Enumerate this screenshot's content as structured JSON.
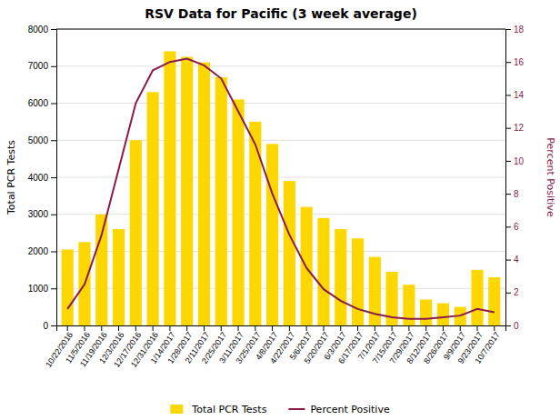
{
  "chart_data": {
    "type": "bar",
    "title": "RSV Data for Pacific (3 week average)",
    "ylabel": "Total PCR Tests",
    "y2label": "Percent Positive",
    "categories": [
      "10/22/2016",
      "11/5/2016",
      "11/19/2016",
      "12/3/2016",
      "12/17/2016",
      "12/31/2016",
      "1/14/2017",
      "1/28/2017",
      "2/11/2017",
      "2/25/2017",
      "3/11/2017",
      "3/25/2017",
      "4/8/2017",
      "4/22/2017",
      "5/6/2017",
      "5/20/2017",
      "6/3/2017",
      "6/17/2017",
      "7/1/2017",
      "7/15/2017",
      "7/29/2017",
      "8/12/2017",
      "8/26/2017",
      "9/9/2017",
      "9/23/2017",
      "10/7/2017"
    ],
    "series": [
      {
        "name": "Total PCR Tests",
        "type": "bar",
        "color": "#FFD700",
        "values": [
          2050,
          2250,
          3000,
          2600,
          5000,
          6300,
          7400,
          7250,
          7100,
          6700,
          6100,
          5500,
          4900,
          3900,
          3200,
          2900,
          2600,
          2350,
          1850,
          1450,
          1100,
          700,
          600,
          500,
          1500,
          1300
        ]
      },
      {
        "name": "Percent Positive",
        "type": "line",
        "color": "#8B1A4A",
        "axis": "y2",
        "values": [
          1.0,
          2.5,
          5.5,
          9.5,
          13.5,
          15.5,
          16.0,
          16.2,
          15.8,
          15.0,
          13.0,
          11.0,
          8.0,
          5.5,
          3.5,
          2.2,
          1.5,
          1.0,
          0.7,
          0.5,
          0.4,
          0.4,
          0.5,
          0.6,
          1.0,
          0.8
        ]
      }
    ],
    "ylim": [
      0,
      8000
    ],
    "yticks": [
      0,
      1000,
      2000,
      3000,
      4000,
      5000,
      6000,
      7000,
      8000
    ],
    "y2lim": [
      0,
      18
    ],
    "y2ticks": [
      0,
      2,
      4,
      6,
      8,
      10,
      12,
      14,
      16,
      18
    ],
    "grid": true,
    "legend": "bottom"
  }
}
